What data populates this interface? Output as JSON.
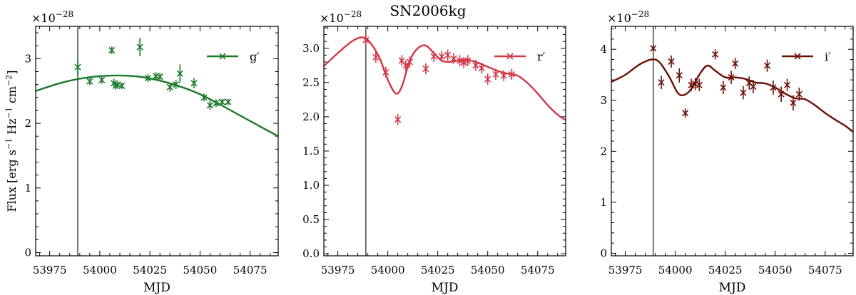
{
  "figure": {
    "title": "SN2006kg",
    "marker_symbol": "×"
  },
  "chart_data": [
    {
      "type": "line",
      "name": "g-band",
      "color": "#1a7a2a",
      "legend": "g′",
      "legend_position": "top-right",
      "xlabel": "MJD",
      "ylabel": "Flux [erg s⁻¹ Hz⁻¹ cm⁻²]",
      "ylabel_parts": [
        "Flux [erg s",
        "−1",
        " Hz",
        "−1",
        " cm",
        "−2",
        "]"
      ],
      "scale_label": "×10",
      "scale_exponent": "−28",
      "xlim": [
        53968,
        54089
      ],
      "ylim": [
        -0.05,
        3.5
      ],
      "xticks": [
        53975,
        54000,
        54025,
        54050,
        54075
      ],
      "yticks": [
        0,
        1,
        2,
        3
      ],
      "ytick_labels": [
        "0",
        "1",
        "2",
        "3"
      ],
      "vline_x": 53989,
      "fit_curve": {
        "x": [
          53968,
          53980,
          53990,
          54000,
          54010,
          54020,
          54030,
          54040,
          54050,
          54060,
          54070,
          54080,
          54089
        ],
        "y": [
          2.5,
          2.62,
          2.69,
          2.73,
          2.74,
          2.72,
          2.66,
          2.57,
          2.45,
          2.29,
          2.12,
          1.95,
          1.8
        ]
      },
      "points": {
        "x": [
          53989,
          53995,
          54001,
          54006,
          54007,
          54008,
          54009,
          54011,
          54020,
          54024,
          54028,
          54030,
          54035,
          54038,
          54040,
          54047,
          54052,
          54055,
          54058,
          54061,
          54064
        ],
        "y": [
          2.87,
          2.65,
          2.67,
          3.13,
          2.62,
          2.58,
          2.6,
          2.58,
          3.18,
          2.7,
          2.73,
          2.72,
          2.56,
          2.6,
          2.77,
          2.62,
          2.4,
          2.28,
          2.31,
          2.33,
          2.33
        ],
        "yerr": [
          0.12,
          0.06,
          0.06,
          0.06,
          0.07,
          0.06,
          0.06,
          0.05,
          0.14,
          0.06,
          0.06,
          0.06,
          0.07,
          0.07,
          0.14,
          0.08,
          0.06,
          0.07,
          0.06,
          0.05,
          0.05
        ]
      }
    },
    {
      "type": "line",
      "name": "r-band",
      "color": "#d03848",
      "legend": "r′",
      "legend_position": "top-right",
      "xlabel": "MJD",
      "ylabel": "",
      "scale_label": "×10",
      "scale_exponent": "−28",
      "xlim": [
        53968,
        54089
      ],
      "ylim": [
        -0.03,
        3.32
      ],
      "xticks": [
        53975,
        54000,
        54025,
        54050,
        54075
      ],
      "yticks": [
        0.0,
        0.5,
        1.0,
        1.5,
        2.0,
        2.5,
        3.0
      ],
      "ytick_labels": [
        "0.0",
        "0.5",
        "1.0",
        "1.5",
        "2.0",
        "2.5",
        "3.0"
      ],
      "vline_x": 53989,
      "fit_curve": {
        "x": [
          53968,
          53975,
          53982,
          53987,
          53991,
          53996,
          54000,
          54004,
          54007,
          54011,
          54015,
          54019,
          54023,
          54027,
          54031,
          54035,
          54040,
          54045,
          54050,
          54055,
          54060,
          54065,
          54070,
          54075,
          54080,
          54085,
          54089
        ],
        "y": [
          2.74,
          2.93,
          3.1,
          3.16,
          3.09,
          2.85,
          2.54,
          2.34,
          2.44,
          2.82,
          3.0,
          3.04,
          2.93,
          2.82,
          2.8,
          2.82,
          2.83,
          2.79,
          2.73,
          2.67,
          2.63,
          2.6,
          2.49,
          2.34,
          2.17,
          2.03,
          1.95
        ]
      },
      "points": {
        "x": [
          53989,
          53994,
          53999,
          54005,
          54007,
          54009,
          54011,
          54019,
          54023,
          54027,
          54030,
          54033,
          54036,
          54038,
          54040,
          54044,
          54047,
          54050,
          54054,
          54058,
          54062
        ],
        "y": [
          3.12,
          2.87,
          2.65,
          1.96,
          2.82,
          2.75,
          2.8,
          2.7,
          2.88,
          2.88,
          2.9,
          2.85,
          2.82,
          2.79,
          2.82,
          2.75,
          2.71,
          2.55,
          2.62,
          2.6,
          2.62
        ]
      }
    },
    {
      "type": "line",
      "name": "i-band",
      "color": "#6b1006",
      "legend": "i′",
      "legend_position": "top-right",
      "xlabel": "MJD",
      "ylabel": "",
      "scale_label": "×10",
      "scale_exponent": "−28",
      "xlim": [
        53968,
        54089
      ],
      "ylim": [
        -0.05,
        4.45
      ],
      "xticks": [
        53975,
        54000,
        54025,
        54050,
        54075
      ],
      "yticks": [
        0,
        1,
        2,
        3,
        4
      ],
      "ytick_labels": [
        "0",
        "1",
        "2",
        "3",
        "4"
      ],
      "vline_x": 53989,
      "fit_curve": {
        "x": [
          53968,
          53975,
          53982,
          53988,
          53992,
          53997,
          54001,
          54004,
          54008,
          54012,
          54016,
          54020,
          54025,
          54030,
          54035,
          54040,
          54045,
          54050,
          54055,
          54060,
          54065,
          54070,
          54075,
          54080,
          54085,
          54089
        ],
        "y": [
          3.36,
          3.5,
          3.7,
          3.8,
          3.75,
          3.46,
          3.16,
          3.1,
          3.22,
          3.5,
          3.68,
          3.58,
          3.45,
          3.45,
          3.42,
          3.35,
          3.33,
          3.25,
          3.13,
          3.04,
          3.02,
          2.9,
          2.75,
          2.62,
          2.5,
          2.38
        ]
      },
      "points": {
        "x": [
          53989,
          53993,
          53998,
          54002,
          54005,
          54008,
          54010,
          54012,
          54020,
          54024,
          54028,
          54030,
          54034,
          54037,
          54039,
          54046,
          54049,
          54053,
          54056,
          54059,
          54062
        ],
        "y": [
          4.02,
          3.35,
          3.76,
          3.49,
          2.75,
          3.3,
          3.32,
          3.3,
          3.9,
          3.25,
          3.45,
          3.72,
          3.15,
          3.34,
          3.27,
          3.68,
          3.25,
          3.12,
          3.3,
          2.95,
          3.12
        ],
        "yerr": [
          0.07,
          0.13,
          0.12,
          0.14,
          0.09,
          0.12,
          0.12,
          0.12,
          0.1,
          0.13,
          0.13,
          0.11,
          0.13,
          0.13,
          0.13,
          0.12,
          0.14,
          0.15,
          0.12,
          0.15,
          0.13
        ]
      }
    }
  ]
}
